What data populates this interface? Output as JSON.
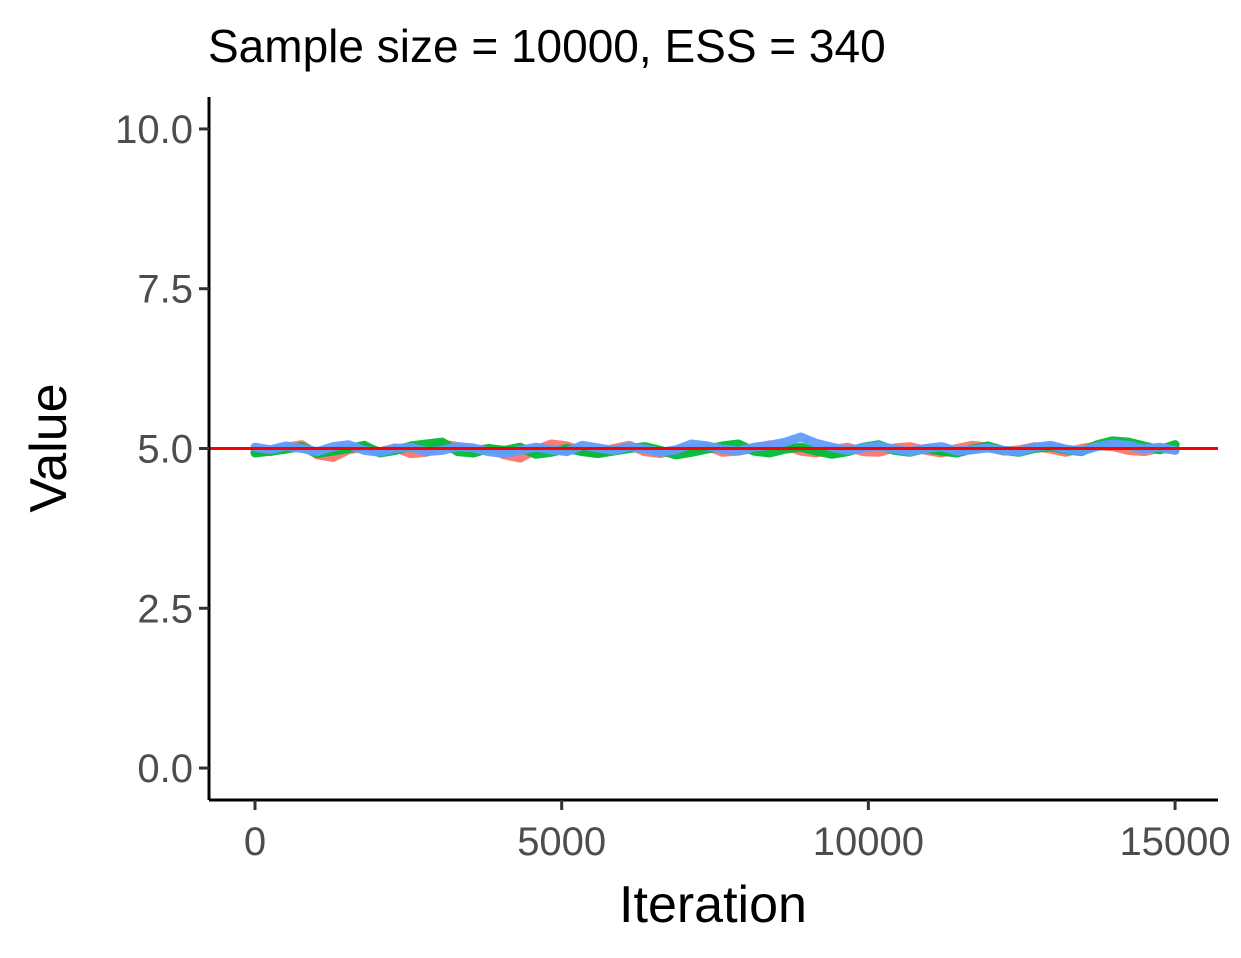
{
  "chart_data": {
    "type": "line",
    "title": "Sample size = 10000, ESS = 340",
    "xlabel": "Iteration",
    "ylabel": "Value",
    "xlim": [
      -750,
      15700
    ],
    "ylim": [
      -0.5,
      10.5
    ],
    "x_ticks": [
      {
        "value": 0,
        "label": "0"
      },
      {
        "value": 5000,
        "label": "5000"
      },
      {
        "value": 10000,
        "label": "10000"
      },
      {
        "value": 15000,
        "label": "15000"
      }
    ],
    "y_ticks": [
      {
        "value": 0.0,
        "label": "0.0"
      },
      {
        "value": 2.5,
        "label": "2.5"
      },
      {
        "value": 5.0,
        "label": "5.0"
      },
      {
        "value": 7.5,
        "label": "7.5"
      },
      {
        "value": 10.0,
        "label": "10.0"
      }
    ],
    "grid": false,
    "legend": "none",
    "reference_line": {
      "y": 5.0,
      "color": "#ff0000"
    },
    "series": [
      {
        "color": "#f8766d",
        "x_start": 0,
        "x_end": 15000,
        "values": [
          4.97,
          4.95,
          5.02,
          5.06,
          4.9,
          4.86,
          4.98,
          5.02,
          4.95,
          5.01,
          4.92,
          4.94,
          5.07,
          5.03,
          4.97,
          5.0,
          4.9,
          4.85,
          4.98,
          5.07,
          5.04,
          4.96,
          4.93,
          5.0,
          5.05,
          4.95,
          4.92,
          4.98,
          4.99,
          5.03,
          4.94,
          4.96,
          5.0,
          5.06,
          5.04,
          4.96,
          4.93,
          4.98,
          5.02,
          4.95,
          4.94,
          5.01,
          5.03,
          4.97,
          4.93,
          5.0,
          5.05,
          5.02,
          4.96,
          4.98,
          5.03,
          4.99,
          4.94,
          5.0,
          5.04,
          5.03,
          4.97,
          4.95,
          5.0,
          4.98
        ]
      },
      {
        "color": "#00ba38",
        "x_start": 0,
        "x_end": 15000,
        "values": [
          4.93,
          4.96,
          4.99,
          5.03,
          4.92,
          4.96,
          5.0,
          5.05,
          4.93,
          4.97,
          5.04,
          5.07,
          5.1,
          4.95,
          4.93,
          5.0,
          4.97,
          5.02,
          4.91,
          4.94,
          5.0,
          4.95,
          4.92,
          4.96,
          5.0,
          5.03,
          4.97,
          4.9,
          4.94,
          4.99,
          5.04,
          5.07,
          4.96,
          4.93,
          4.99,
          5.02,
          4.96,
          4.91,
          4.95,
          5.02,
          5.06,
          4.97,
          4.94,
          5.0,
          4.96,
          4.93,
          4.99,
          5.04,
          4.97,
          4.94,
          5.0,
          5.03,
          4.98,
          4.95,
          5.06,
          5.12,
          5.1,
          5.04,
          4.98,
          5.06
        ]
      },
      {
        "color": "#619cff",
        "x_start": 0,
        "x_end": 15000,
        "values": [
          5.02,
          4.98,
          5.04,
          5.0,
          4.95,
          5.03,
          5.06,
          4.97,
          4.94,
          5.0,
          5.02,
          4.95,
          4.97,
          5.03,
          5.01,
          4.95,
          4.92,
          4.97,
          5.02,
          4.98,
          4.95,
          5.05,
          5.01,
          4.97,
          5.03,
          4.99,
          4.94,
          4.98,
          5.07,
          5.04,
          4.99,
          4.96,
          5.02,
          5.05,
          5.1,
          5.18,
          5.08,
          5.02,
          4.97,
          5.01,
          5.04,
          4.99,
          4.95,
          5.0,
          5.03,
          4.96,
          4.98,
          5.01,
          4.97,
          4.95,
          5.02,
          5.05,
          4.99,
          4.96,
          5.03,
          5.07,
          5.05,
          4.99,
          5.02,
          4.97
        ]
      }
    ]
  }
}
